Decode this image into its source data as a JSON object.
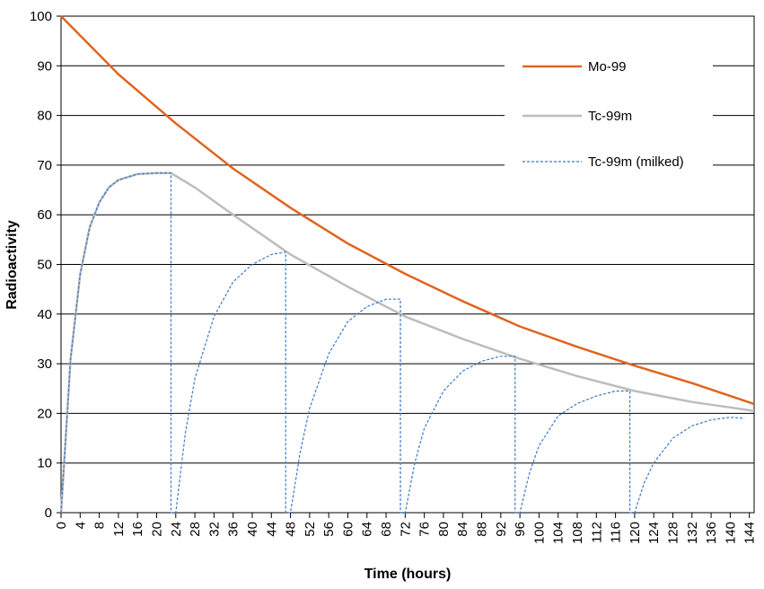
{
  "chart_data": {
    "type": "line",
    "title": "",
    "xlabel": "Time (hours)",
    "ylabel": "Radioactivity",
    "xlim": [
      0,
      145
    ],
    "ylim": [
      0,
      100
    ],
    "x_ticks": [
      0,
      4,
      8,
      12,
      16,
      20,
      24,
      28,
      32,
      36,
      40,
      44,
      48,
      52,
      56,
      60,
      64,
      68,
      72,
      76,
      80,
      84,
      88,
      92,
      96,
      100,
      104,
      108,
      112,
      116,
      120,
      124,
      128,
      132,
      136,
      140,
      144
    ],
    "y_ticks": [
      0,
      10,
      20,
      30,
      40,
      50,
      60,
      70,
      80,
      90,
      100
    ],
    "grid": "horizontal",
    "legend_position": "top-right",
    "series": [
      {
        "name": "Mo-99",
        "color": "#e0641f",
        "style": "solid",
        "x": [
          0,
          12,
          24,
          36,
          48,
          60,
          72,
          84,
          96,
          108,
          120,
          132,
          145
        ],
        "y": [
          100,
          88.3,
          78.4,
          69.3,
          61.4,
          54.2,
          48.1,
          42.6,
          37.5,
          33.4,
          29.6,
          26.1,
          21.9
        ]
      },
      {
        "name": "Tc-99m",
        "color": "#bdbdbd",
        "style": "solid",
        "x": [
          0,
          2,
          4,
          6,
          8,
          10,
          12,
          16,
          20,
          23,
          28,
          36,
          48,
          60,
          72,
          84,
          96,
          108,
          120,
          132,
          145
        ],
        "y": [
          0,
          31,
          48,
          57.5,
          62.5,
          65.5,
          67,
          68.2,
          68.4,
          68.4,
          65.5,
          60,
          52,
          45.5,
          39.5,
          35,
          31,
          27.5,
          24.5,
          22.3,
          20.5
        ]
      },
      {
        "name": "Tc-99m (milked)",
        "color": "#3a78c8",
        "style": "dashed",
        "x": [
          0,
          2,
          4,
          6,
          8,
          10,
          12,
          16,
          20,
          23,
          23,
          24,
          26,
          28,
          32,
          36,
          40,
          44,
          47,
          47,
          48,
          50,
          52,
          56,
          60,
          64,
          68,
          71,
          71,
          72,
          74,
          76,
          80,
          84,
          88,
          92,
          95,
          95,
          96,
          98,
          100,
          104,
          108,
          112,
          116,
          119,
          119,
          120,
          122,
          124,
          128,
          132,
          136,
          140,
          143
        ],
        "y": [
          0,
          31,
          48,
          57.5,
          62.5,
          65.5,
          67,
          68.2,
          68.4,
          68.4,
          0,
          0,
          16,
          27,
          39.5,
          46.5,
          50,
          52,
          52.5,
          0,
          0,
          12,
          21,
          32,
          38.5,
          41.5,
          43,
          43,
          0,
          0,
          10,
          17,
          24.5,
          28.5,
          30.5,
          31.5,
          31.5,
          0,
          0,
          8,
          13.5,
          19.5,
          22,
          23.5,
          24.5,
          24.5,
          0,
          0,
          6,
          10,
          15,
          17.5,
          18.7,
          19.2,
          19
        ]
      }
    ]
  }
}
